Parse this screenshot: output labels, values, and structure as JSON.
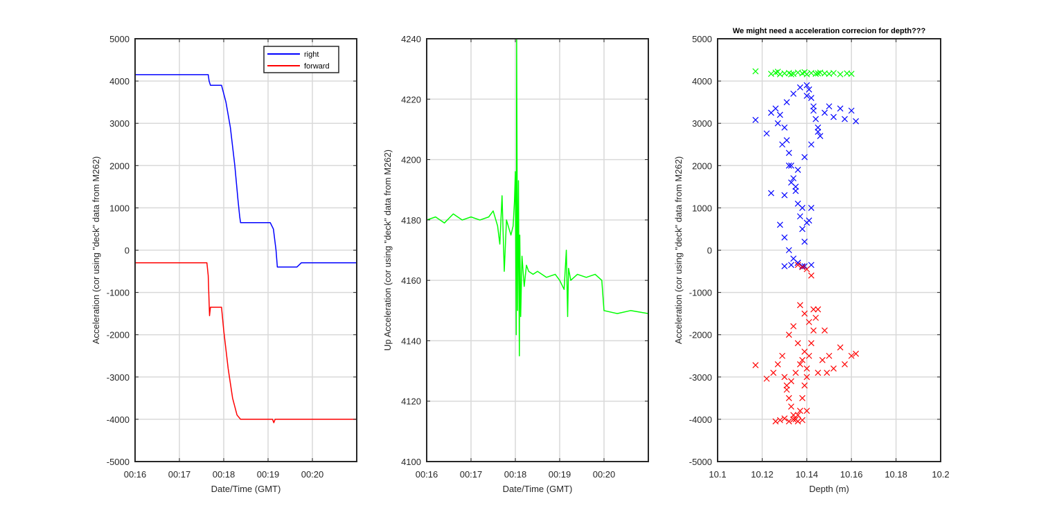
{
  "colors": {
    "right": "#0000ff",
    "forward": "#ff0000",
    "up": "#00ff00",
    "grid": "#d9d9d9",
    "axis": "#262626",
    "background": "#ffffff"
  },
  "chart_data": [
    {
      "type": "line",
      "title": "",
      "xlabel": "Date/Time (GMT)",
      "ylabel": "Acceleration (cor using \"deck\" data from M262)",
      "xlim": [
        16.0,
        21.0
      ],
      "xlim_unit": "minutes after 00:00",
      "ylim": [
        -5000,
        5000
      ],
      "grid": true,
      "legend_position": "top-right",
      "x_ticks": [
        16,
        17,
        18,
        19,
        20
      ],
      "x_tick_labels": [
        "00:16",
        "00:17",
        "00:18",
        "00:19",
        "00:20"
      ],
      "y_ticks": [
        -5000,
        -4000,
        -3000,
        -2000,
        -1000,
        0,
        1000,
        2000,
        3000,
        4000,
        5000
      ],
      "y_tick_labels": [
        "-5000",
        "-4000",
        "-3000",
        "-2000",
        "-1000",
        "0",
        "1000",
        "2000",
        "3000",
        "4000",
        "5000"
      ],
      "series": [
        {
          "name": "right",
          "color_key": "right",
          "x": [
            16.0,
            16.5,
            17.0,
            17.4,
            17.65,
            17.67,
            17.7,
            17.95,
            18.05,
            18.15,
            18.25,
            18.32,
            18.36,
            18.38,
            18.42,
            18.6,
            18.8,
            19.05,
            19.12,
            19.18,
            19.21,
            19.25,
            19.5,
            19.65,
            19.75,
            20.0,
            20.5,
            21.0
          ],
          "y": [
            4150,
            4150,
            4150,
            4150,
            4150,
            4000,
            3900,
            3900,
            3500,
            2900,
            2000,
            1200,
            800,
            650,
            650,
            650,
            650,
            650,
            500,
            0,
            -400,
            -400,
            -400,
            -400,
            -300,
            -300,
            -300,
            -300
          ]
        },
        {
          "name": "forward",
          "color_key": "forward",
          "x": [
            16.0,
            16.5,
            17.0,
            17.5,
            17.62,
            17.65,
            17.68,
            17.7,
            17.72,
            17.95,
            18.0,
            18.1,
            18.2,
            18.3,
            18.38,
            18.45,
            19.0,
            19.1,
            19.13,
            19.16,
            19.2,
            19.5,
            20.0,
            20.5,
            21.0
          ],
          "y": [
            -300,
            -300,
            -300,
            -300,
            -300,
            -600,
            -1550,
            -1350,
            -1350,
            -1350,
            -1900,
            -2800,
            -3500,
            -3900,
            -4000,
            -4000,
            -4000,
            -4000,
            -4080,
            -4000,
            -4000,
            -4000,
            -4000,
            -4000,
            -4000
          ]
        }
      ]
    },
    {
      "type": "line",
      "title": "",
      "xlabel": "Date/Time (GMT)",
      "ylabel": "Up Acceleration (cor using \"deck\" data from M262)",
      "xlim": [
        16.0,
        21.0
      ],
      "xlim_unit": "minutes after 00:00",
      "ylim": [
        4100,
        4240
      ],
      "grid": true,
      "x_ticks": [
        16,
        17,
        18,
        19,
        20
      ],
      "x_tick_labels": [
        "00:16",
        "00:17",
        "00:18",
        "00:19",
        "00:20"
      ],
      "y_ticks": [
        4100,
        4120,
        4140,
        4160,
        4180,
        4200,
        4220,
        4240
      ],
      "y_tick_labels": [
        "4100",
        "4120",
        "4140",
        "4160",
        "4180",
        "4200",
        "4220",
        "4240"
      ],
      "series": [
        {
          "name": "up",
          "color_key": "up",
          "x": [
            16.0,
            16.2,
            16.4,
            16.6,
            16.8,
            17.0,
            17.2,
            17.4,
            17.5,
            17.6,
            17.65,
            17.7,
            17.75,
            17.8,
            17.9,
            17.95,
            17.98,
            18.0,
            18.02,
            18.03,
            18.05,
            18.07,
            18.09,
            18.1,
            18.12,
            18.15,
            18.2,
            18.25,
            18.3,
            18.4,
            18.5,
            18.7,
            18.9,
            19.0,
            19.1,
            19.15,
            19.18,
            19.2,
            19.25,
            19.4,
            19.6,
            19.8,
            19.95,
            20.0,
            20.3,
            20.6,
            21.0
          ],
          "y": [
            4180,
            4181,
            4179,
            4182,
            4180,
            4181,
            4180,
            4181,
            4183,
            4178,
            4172,
            4188,
            4163,
            4180,
            4175,
            4178,
            4186,
            4196,
            4142,
            4240,
            4150,
            4193,
            4135,
            4175,
            4148,
            4168,
            4158,
            4165,
            4163,
            4162,
            4163,
            4161,
            4162,
            4160,
            4157,
            4170,
            4148,
            4164,
            4160,
            4162,
            4161,
            4162,
            4160,
            4150,
            4149,
            4150,
            4149
          ]
        }
      ]
    },
    {
      "type": "scatter",
      "title": "We might need a acceleration correcion for depth???",
      "xlabel": "Depth (m)",
      "ylabel": "Acceleration (cor using \"deck\" data from M262)",
      "xlim": [
        10.1,
        10.2
      ],
      "ylim": [
        -5000,
        5000
      ],
      "grid": true,
      "marker": "x",
      "x_ticks": [
        10.1,
        10.12,
        10.14,
        10.16,
        10.18,
        10.2
      ],
      "x_tick_labels": [
        "10.1",
        "10.12",
        "10.14",
        "10.16",
        "10.18",
        "10.2"
      ],
      "y_ticks": [
        -5000,
        -4000,
        -3000,
        -2000,
        -1000,
        0,
        1000,
        2000,
        3000,
        4000,
        5000
      ],
      "y_tick_labels": [
        "-5000",
        "-4000",
        "-3000",
        "-2000",
        "-1000",
        "0",
        "1000",
        "2000",
        "3000",
        "4000",
        "5000"
      ],
      "series": [
        {
          "name": "up",
          "color_key": "up",
          "x": [
            10.117,
            10.124,
            10.126,
            10.128,
            10.13,
            10.132,
            10.134,
            10.136,
            10.138,
            10.14,
            10.142,
            10.144,
            10.146,
            10.148,
            10.15,
            10.152,
            10.155,
            10.158,
            10.16,
            10.127,
            10.133,
            10.139,
            10.145
          ],
          "y": [
            4230,
            4170,
            4200,
            4160,
            4180,
            4190,
            4170,
            4200,
            4180,
            4160,
            4190,
            4170,
            4200,
            4180,
            4170,
            4190,
            4160,
            4180,
            4170,
            4220,
            4160,
            4210,
            4180
          ]
        },
        {
          "name": "right",
          "color_key": "right",
          "x": [
            10.117,
            10.122,
            10.124,
            10.126,
            10.128,
            10.13,
            10.131,
            10.132,
            10.133,
            10.134,
            10.135,
            10.136,
            10.137,
            10.138,
            10.139,
            10.14,
            10.141,
            10.142,
            10.143,
            10.144,
            10.145,
            10.146,
            10.148,
            10.15,
            10.152,
            10.155,
            10.157,
            10.16,
            10.162,
            10.128,
            10.13,
            10.132,
            10.134,
            10.136,
            10.138,
            10.14,
            10.142,
            10.13,
            10.133,
            10.136,
            10.139,
            10.142,
            10.145,
            10.131,
            10.134,
            10.137,
            10.14,
            10.143,
            10.127,
            10.129,
            10.132,
            10.135,
            10.138,
            10.141,
            10.124,
            10.13,
            10.133,
            10.136,
            10.139,
            10.142
          ],
          "y": [
            3080,
            2760,
            3250,
            3350,
            3200,
            2900,
            2600,
            2300,
            2000,
            1700,
            1400,
            1100,
            800,
            500,
            200,
            3900,
            3800,
            3600,
            3400,
            3100,
            2900,
            2700,
            3250,
            3400,
            3150,
            3350,
            3100,
            3300,
            3050,
            600,
            300,
            0,
            -200,
            -300,
            -380,
            650,
            1000,
            1300,
            1600,
            1900,
            2200,
            2500,
            2800,
            3500,
            3700,
            3850,
            3650,
            3300,
            3000,
            2500,
            2000,
            1500,
            1000,
            700,
            1350,
            -380,
            -350,
            -300,
            -380,
            -350
          ]
        },
        {
          "name": "forward",
          "color_key": "forward",
          "x": [
            10.117,
            10.122,
            10.125,
            10.127,
            10.129,
            10.13,
            10.131,
            10.132,
            10.133,
            10.134,
            10.135,
            10.136,
            10.137,
            10.138,
            10.139,
            10.14,
            10.141,
            10.142,
            10.143,
            10.144,
            10.145,
            10.147,
            10.149,
            10.15,
            10.152,
            10.155,
            10.157,
            10.16,
            10.162,
            10.136,
            10.138,
            10.14,
            10.142,
            10.137,
            10.139,
            10.141,
            10.143,
            10.126,
            10.128,
            10.13,
            10.132,
            10.134,
            10.136,
            10.138,
            10.14,
            10.131,
            10.133,
            10.135,
            10.137,
            10.139,
            10.132,
            10.134,
            10.136,
            10.138,
            10.14,
            10.145,
            10.148
          ],
          "y": [
            -2720,
            -3040,
            -2900,
            -2700,
            -2500,
            -3000,
            -3200,
            -3500,
            -3700,
            -3900,
            -4000,
            -4050,
            -3800,
            -3500,
            -3200,
            -2800,
            -2500,
            -2200,
            -1900,
            -1600,
            -1400,
            -2600,
            -2900,
            -2500,
            -2800,
            -2300,
            -2700,
            -2500,
            -2450,
            -350,
            -400,
            -450,
            -600,
            -1300,
            -1500,
            -1700,
            -1400,
            -4050,
            -4020,
            -3980,
            -4050,
            -4000,
            -3900,
            -4020,
            -3800,
            -3300,
            -3100,
            -2900,
            -2700,
            -2400,
            -2000,
            -1800,
            -2200,
            -2600,
            -3000,
            -2900,
            -1900
          ]
        }
      ]
    }
  ],
  "legend": [
    {
      "label": "right",
      "color_key": "right"
    },
    {
      "label": "forward",
      "color_key": "forward"
    }
  ]
}
